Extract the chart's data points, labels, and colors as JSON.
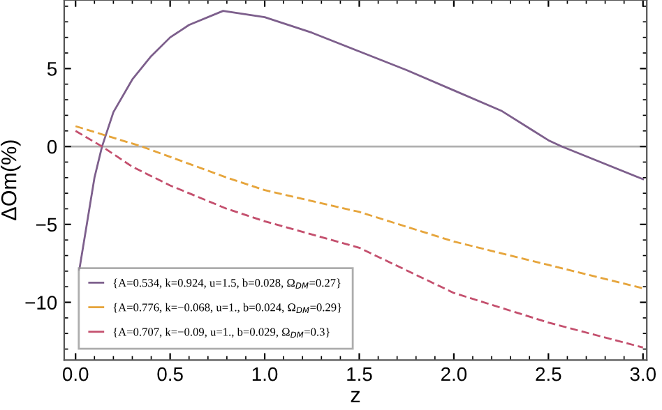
{
  "chart_data": {
    "type": "line",
    "xlabel": "z",
    "ylabel": "ΔOm(%)",
    "xlim": [
      -0.06,
      3.02
    ],
    "ylim": [
      -13.7,
      9.4
    ],
    "xticks": [
      {
        "value": 0,
        "label": "0.0"
      },
      0.5,
      {
        "value": 1,
        "label": "1.0"
      },
      1.5,
      {
        "value": 2,
        "label": "2.0"
      },
      2.5,
      {
        "value": 3,
        "label": "3.0"
      }
    ],
    "yticks": [
      -10,
      -5,
      0,
      5
    ],
    "grid": false,
    "legend": "bottom left",
    "marker": "none",
    "ref_lines": [
      {
        "axis": "y",
        "value": 0,
        "color": "#b0b0b0"
      }
    ],
    "series": [
      {
        "name": "{A=0.534, k=0.924, u=1.5, b=0.028, Ω$_{DM}$=0.27}",
        "color": "#7d5f8c",
        "line_style": "solid",
        "x": [
          0.02,
          0.1,
          0.14,
          0.2,
          0.3,
          0.4,
          0.5,
          0.6,
          0.78,
          1.0,
          1.25,
          1.5,
          1.75,
          2.0,
          2.25,
          2.5,
          2.57,
          3.0
        ],
        "values": [
          -7.9,
          -2.0,
          0,
          2.2,
          4.3,
          5.8,
          7.0,
          7.8,
          8.7,
          8.3,
          7.3,
          6.1,
          4.9,
          3.6,
          2.3,
          0.4,
          0,
          -2.1
        ]
      },
      {
        "name": "{A=0.776, k=−0.068, u=1., b=0.024, Ω$_{DM}$=0.29}",
        "color": "#e6a53c",
        "line_style": "dashed",
        "x": [
          0.0,
          0.35,
          0.8,
          1.0,
          1.5,
          2.0,
          2.5,
          3.0
        ],
        "values": [
          1.3,
          0,
          -2.0,
          -2.8,
          -4.2,
          -6.1,
          -7.6,
          -9.1
        ]
      },
      {
        "name": "{A=0.707, k=−0.09, u=1., b=0.029, Ω$_{DM}$=0.3}",
        "color": "#c4506e",
        "line_style": "dashed",
        "x": [
          0.0,
          0.14,
          0.3,
          0.5,
          0.8,
          1.0,
          1.5,
          2.0,
          2.5,
          3.0
        ],
        "values": [
          1.0,
          0,
          -1.3,
          -2.5,
          -4.0,
          -4.8,
          -6.5,
          -9.4,
          -11.3,
          -12.9
        ]
      }
    ]
  }
}
